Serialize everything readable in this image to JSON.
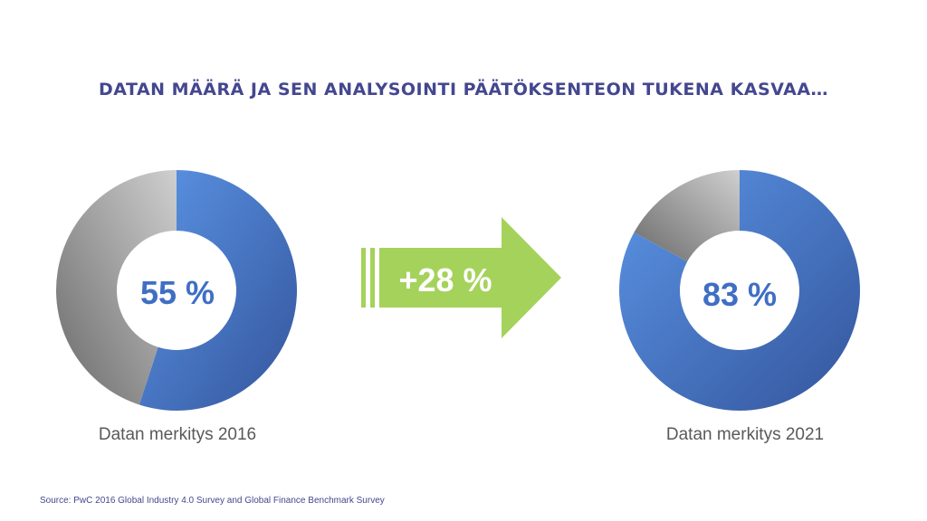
{
  "title": "Datan määrä ja sen analysointi päätöksenteon tukena kasvaa…",
  "arrow_label": "+28 %",
  "source": "Source: PwC 2016 Global Industry 4.0 Survey and Global Finance Benchmark Survey",
  "colors": {
    "title": "#44478f",
    "blue_light": "#5b95e6",
    "blue_dark": "#34559c",
    "grey_light": "#c8c8c8",
    "grey_dark": "#6e6e6e",
    "value_text": "#3f6fc4",
    "arrow": "#a5d25b",
    "caption": "#595959"
  },
  "chart_data": [
    {
      "type": "pie",
      "categories": [
        "",
        ""
      ],
      "values": [
        55,
        45
      ],
      "center_label": "55 %",
      "xlabel": "Datan merkitys 2016"
    },
    {
      "type": "pie",
      "categories": [
        "",
        ""
      ],
      "values": [
        83,
        17
      ],
      "center_label": "83 %",
      "xlabel": "Datan merkitys 2021"
    }
  ]
}
